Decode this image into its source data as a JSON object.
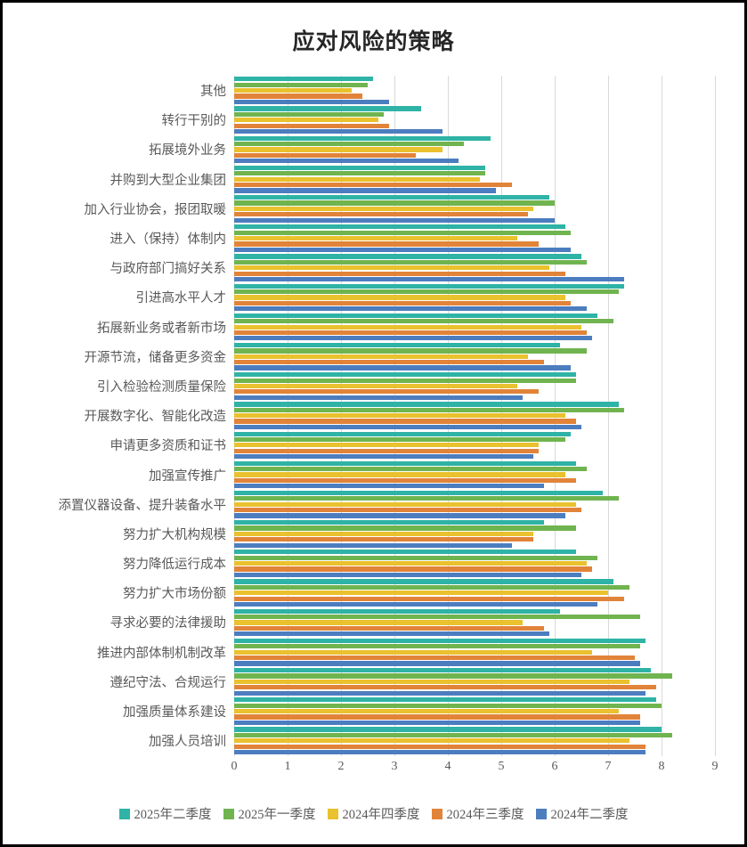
{
  "title": "应对风险的策略",
  "chart_data": {
    "type": "bar",
    "orientation": "horizontal",
    "title": "应对风险的策略",
    "xlabel": "",
    "ylabel": "",
    "xlim": [
      0,
      9
    ],
    "x_ticks": [
      "0",
      "1",
      "2",
      "3",
      "4",
      "5",
      "6",
      "7",
      "8",
      "9"
    ],
    "grid": true,
    "legend_position": "bottom",
    "categories": [
      "其他",
      "转行干别的",
      "拓展境外业务",
      "并购到大型企业集团",
      "加入行业协会，报团取暖",
      "进入（保持）体制内",
      "与政府部门搞好关系",
      "引进高水平人才",
      "拓展新业务或者新市场",
      "开源节流，储备更多资金",
      "引入检验检测质量保险",
      "开展数字化、智能化改造",
      "申请更多资质和证书",
      "加强宣传推广",
      "添置仪器设备、提升装备水平",
      "努力扩大机构规模",
      "努力降低运行成本",
      "努力扩大市场份额",
      "寻求必要的法律援助",
      "推进内部体制机制改革",
      "遵纪守法、合规运行",
      "加强质量体系建设",
      "加强人员培训"
    ],
    "series": [
      {
        "name": "2025年二季度",
        "color": "#2FB3A6",
        "values": [
          2.6,
          3.5,
          4.8,
          4.7,
          5.9,
          6.2,
          6.5,
          7.3,
          6.8,
          6.1,
          6.4,
          7.2,
          6.3,
          6.4,
          6.9,
          5.8,
          6.4,
          7.1,
          6.1,
          7.7,
          7.8,
          7.9,
          8.0
        ]
      },
      {
        "name": "2025年一季度",
        "color": "#70B450",
        "values": [
          2.5,
          2.8,
          4.3,
          4.7,
          6.0,
          6.3,
          6.6,
          7.2,
          7.1,
          6.6,
          6.4,
          7.3,
          6.2,
          6.6,
          7.2,
          6.4,
          6.8,
          7.4,
          7.6,
          7.6,
          8.2,
          8.0,
          8.2
        ]
      },
      {
        "name": "2024年四季度",
        "color": "#EAC12E",
        "values": [
          2.2,
          2.7,
          3.9,
          4.6,
          5.6,
          5.3,
          5.9,
          6.2,
          6.5,
          5.5,
          5.3,
          6.2,
          5.7,
          6.2,
          6.4,
          5.6,
          6.6,
          7.0,
          5.4,
          6.7,
          7.4,
          7.2,
          7.4
        ]
      },
      {
        "name": "2024年三季度",
        "color": "#E18439",
        "values": [
          2.4,
          2.9,
          3.4,
          5.2,
          5.5,
          5.7,
          6.2,
          6.3,
          6.6,
          5.8,
          5.7,
          6.4,
          5.7,
          6.4,
          6.5,
          5.6,
          6.7,
          7.3,
          5.8,
          7.5,
          7.9,
          7.6,
          7.7
        ]
      },
      {
        "name": "2024年二季度",
        "color": "#4C7DBF",
        "values": [
          2.9,
          3.9,
          4.2,
          4.9,
          6.0,
          6.3,
          7.3,
          6.6,
          6.7,
          6.3,
          5.4,
          6.5,
          5.6,
          5.8,
          6.2,
          5.2,
          6.5,
          6.8,
          5.9,
          7.6,
          7.7,
          7.6,
          7.7
        ]
      }
    ]
  }
}
